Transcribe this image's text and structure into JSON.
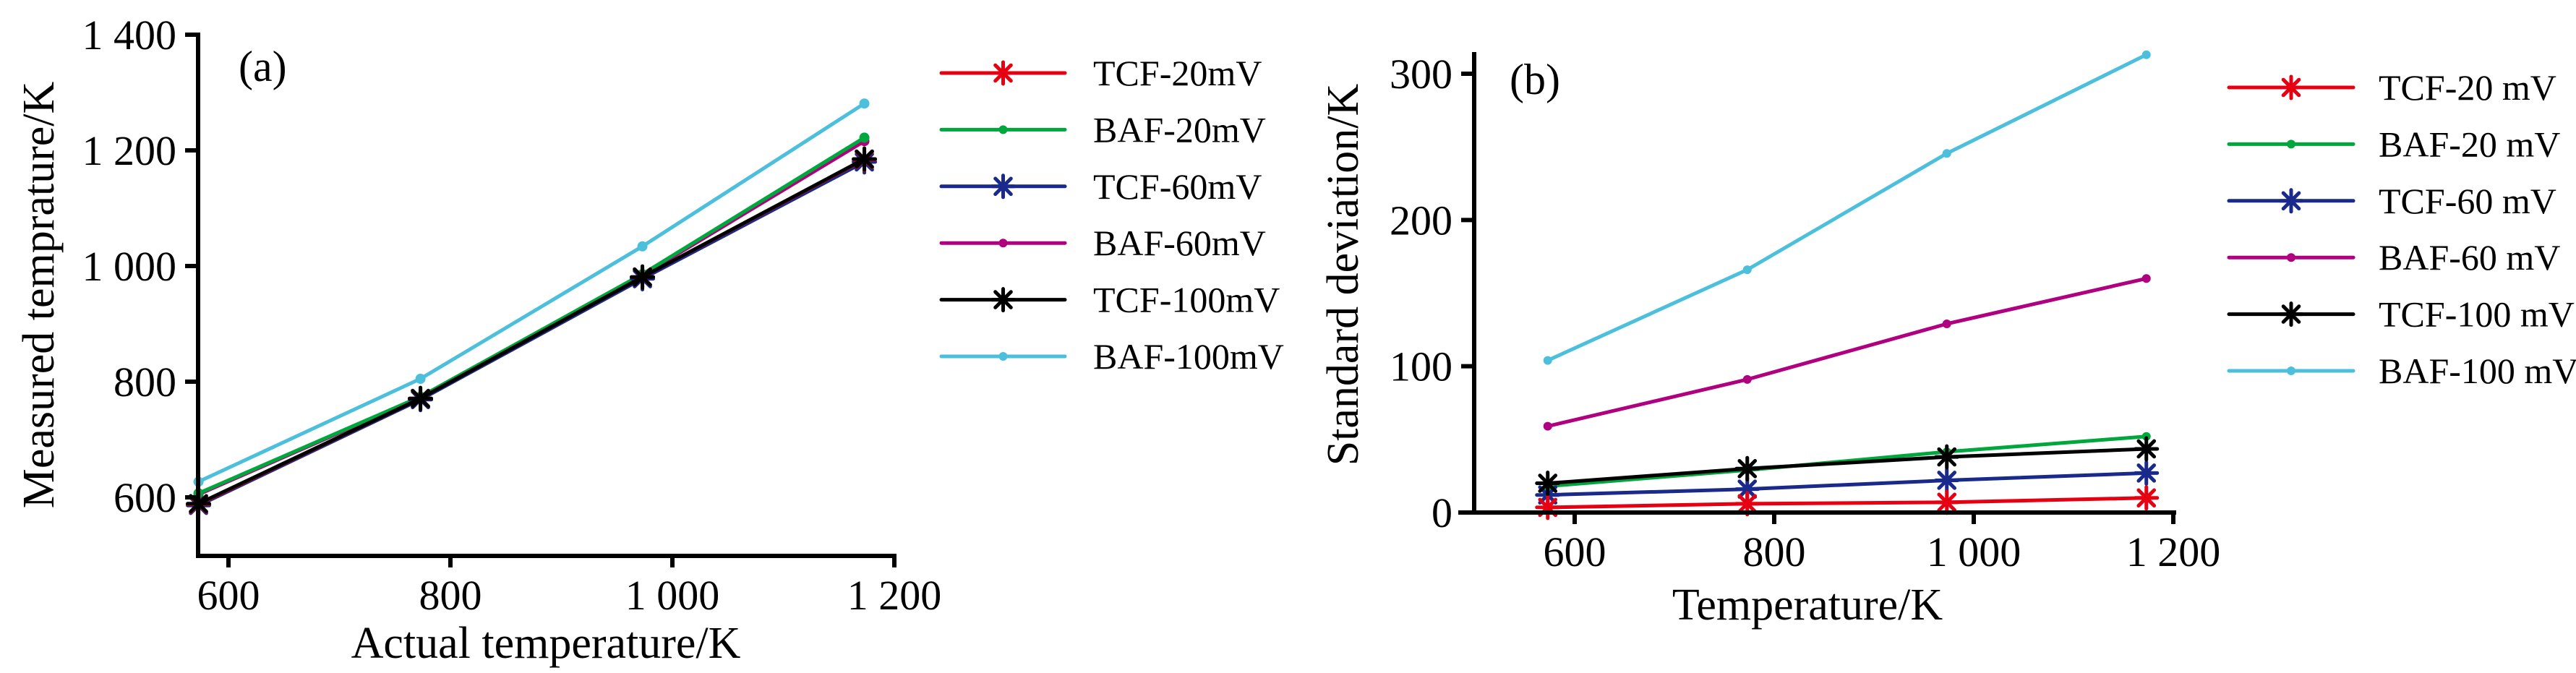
{
  "chart_data": [
    {
      "id": "a",
      "type": "line",
      "panel_label": "(a)",
      "title": "",
      "xlabel": "Actual temperature/K",
      "ylabel": "Measured temprature/K",
      "xlim": [
        573,
        1200
      ],
      "ylim": [
        497,
        1400
      ],
      "xticks": [
        600,
        800,
        1000,
        1200
      ],
      "xtick_labels": [
        "600",
        "800",
        "1 000",
        "1 200"
      ],
      "yticks": [
        600,
        800,
        1000,
        1200,
        1400
      ],
      "ytick_labels": [
        "600",
        "800",
        "1 000",
        "1 200",
        "1 400"
      ],
      "grid": false,
      "legend_position": "right",
      "x": [
        573,
        773,
        973,
        1173
      ],
      "series": [
        {
          "name": "TCF-20mV",
          "color": "#e60012",
          "marker": "asterisk",
          "values": [
            588,
            771,
            981,
            1184
          ]
        },
        {
          "name": "BAF-20mV",
          "color": "#00a73c",
          "marker": "dot",
          "values": [
            607,
            774,
            986,
            1222
          ]
        },
        {
          "name": "TCF-60mV",
          "color": "#1a2a8c",
          "marker": "asterisk",
          "values": [
            586,
            769,
            978,
            1180
          ]
        },
        {
          "name": "BAF-60mV",
          "color": "#b0007f",
          "marker": "dot",
          "values": [
            605,
            773,
            984,
            1216
          ]
        },
        {
          "name": "TCF-100mV",
          "color": "#000000",
          "marker": "asterisk",
          "values": [
            589,
            771,
            981,
            1185
          ]
        },
        {
          "name": "BAF-100mV",
          "color": "#4bbfdc",
          "marker": "dot",
          "values": [
            627,
            805,
            1034,
            1281
          ]
        }
      ]
    },
    {
      "id": "b",
      "type": "line",
      "panel_label": "(b)",
      "title": "",
      "xlabel": "Temperature/K",
      "ylabel": "Standard deviation/K",
      "xlim": [
        480,
        1200
      ],
      "ylim": [
        0,
        313
      ],
      "xticks": [
        600,
        800,
        1000,
        1200
      ],
      "xtick_labels": [
        "600",
        "800",
        "1 000",
        "1 200"
      ],
      "yticks": [
        0,
        100,
        200,
        300
      ],
      "ytick_labels": [
        "0",
        "100",
        "200",
        "300"
      ],
      "grid": false,
      "legend_position": "right",
      "x": [
        573,
        773,
        973,
        1173
      ],
      "series": [
        {
          "name": "TCF-20 mV",
          "color": "#e60012",
          "marker": "asterisk",
          "values": [
            3.5,
            6,
            7,
            10
          ]
        },
        {
          "name": "BAF-20 mV",
          "color": "#00a73c",
          "marker": "dot",
          "values": [
            18,
            29,
            41.5,
            52
          ]
        },
        {
          "name": "TCF-60 mV",
          "color": "#1a2a8c",
          "marker": "asterisk",
          "values": [
            12,
            16,
            22,
            27
          ]
        },
        {
          "name": "BAF-60 mV",
          "color": "#b0007f",
          "marker": "dot",
          "values": [
            59,
            91,
            129,
            160
          ]
        },
        {
          "name": "TCF-100 mV",
          "color": "#000000",
          "marker": "asterisk",
          "values": [
            20,
            30,
            38,
            43.5
          ]
        },
        {
          "name": "BAF-100 mV",
          "color": "#4bbfdc",
          "marker": "dot",
          "values": [
            104,
            166,
            245.5,
            313
          ]
        }
      ]
    }
  ]
}
